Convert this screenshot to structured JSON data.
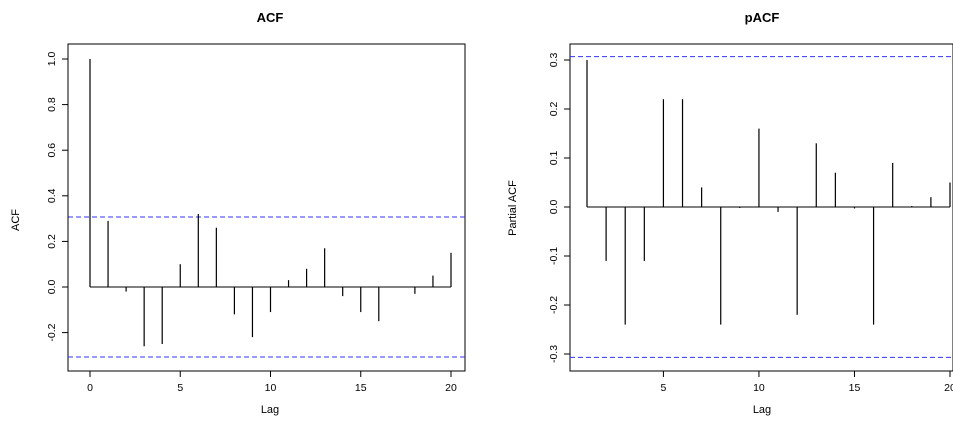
{
  "chart_data": [
    {
      "type": "bar",
      "title": "ACF",
      "xlabel": "Lag",
      "ylabel": "ACF",
      "xlim": [
        0,
        20
      ],
      "ylim": [
        -0.35,
        1.0
      ],
      "xticks": [
        0,
        5,
        10,
        15,
        20
      ],
      "xtick_labels": [
        "0",
        "5",
        "10",
        "15",
        "20"
      ],
      "yticks": [
        -0.2,
        0.0,
        0.2,
        0.4,
        0.6,
        0.8,
        1.0
      ],
      "ytick_labels": [
        "-0.2",
        "0.0",
        "0.2",
        "0.4",
        "0.6",
        "0.8",
        "1.0"
      ],
      "x": [
        0,
        1,
        2,
        3,
        4,
        5,
        6,
        7,
        8,
        9,
        10,
        11,
        12,
        13,
        14,
        15,
        16,
        17,
        18,
        19,
        20
      ],
      "values": [
        1.0,
        0.29,
        -0.02,
        -0.26,
        -0.25,
        0.1,
        0.32,
        0.26,
        -0.12,
        -0.22,
        -0.11,
        0.03,
        0.08,
        0.17,
        -0.04,
        -0.11,
        -0.15,
        0.0,
        -0.03,
        0.05,
        0.15
      ],
      "confidence_band": [
        -0.307,
        0.307
      ],
      "band_color": "#3333ff",
      "bar_color": "#000000",
      "grid": false
    },
    {
      "type": "bar",
      "title": "pACF",
      "xlabel": "Lag",
      "ylabel": "Partial ACF",
      "xlim": [
        0.5,
        20
      ],
      "ylim": [
        -0.32,
        0.32
      ],
      "xticks": [
        5,
        10,
        15,
        20
      ],
      "xtick_labels": [
        "5",
        "10",
        "15",
        "20"
      ],
      "yticks": [
        -0.3,
        -0.2,
        -0.1,
        0.0,
        0.1,
        0.2,
        0.3
      ],
      "ytick_labels": [
        "-0.3",
        "-0.2",
        "-0.1",
        "0.0",
        "0.1",
        "0.2",
        "0.3"
      ],
      "x": [
        1,
        2,
        3,
        4,
        5,
        6,
        7,
        8,
        9,
        10,
        11,
        12,
        13,
        14,
        15,
        16,
        17,
        18,
        19,
        20
      ],
      "values": [
        0.3,
        -0.11,
        -0.24,
        -0.11,
        0.22,
        0.22,
        0.04,
        -0.24,
        -0.002,
        0.16,
        -0.01,
        -0.22,
        0.13,
        0.07,
        -0.003,
        -0.24,
        0.09,
        0.002,
        0.02,
        0.05
      ],
      "confidence_band": [
        -0.307,
        0.307
      ],
      "band_color": "#3333ff",
      "bar_color": "#000000",
      "grid": false
    }
  ]
}
